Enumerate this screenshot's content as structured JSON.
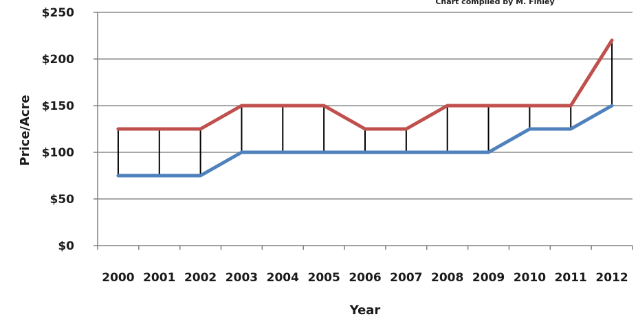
{
  "chart_data": {
    "type": "line",
    "title": "",
    "annotation": "Chart compiled by M. Finley",
    "xlabel": "Year",
    "ylabel": "Price/Acre",
    "categories": [
      "2000",
      "2001",
      "2002",
      "2003",
      "2004",
      "2005",
      "2006",
      "2007",
      "2008",
      "2009",
      "2010",
      "2011",
      "2012"
    ],
    "series": [
      {
        "values": [
          125,
          125,
          125,
          150,
          150,
          150,
          125,
          125,
          150,
          150,
          150,
          150,
          220
        ],
        "color": "#c0504d"
      },
      {
        "values": [
          75,
          75,
          75,
          100,
          100,
          100,
          100,
          100,
          100,
          100,
          125,
          125,
          150
        ],
        "color": "#4f81bd"
      }
    ],
    "high_low_lines": true,
    "ylim": [
      0,
      250
    ],
    "yticks": [
      0,
      50,
      100,
      150,
      200,
      250
    ],
    "ytick_labels": [
      "$0",
      "$50",
      "$100",
      "$150",
      "$200",
      "$250"
    ],
    "grid": true,
    "legend": "none"
  }
}
